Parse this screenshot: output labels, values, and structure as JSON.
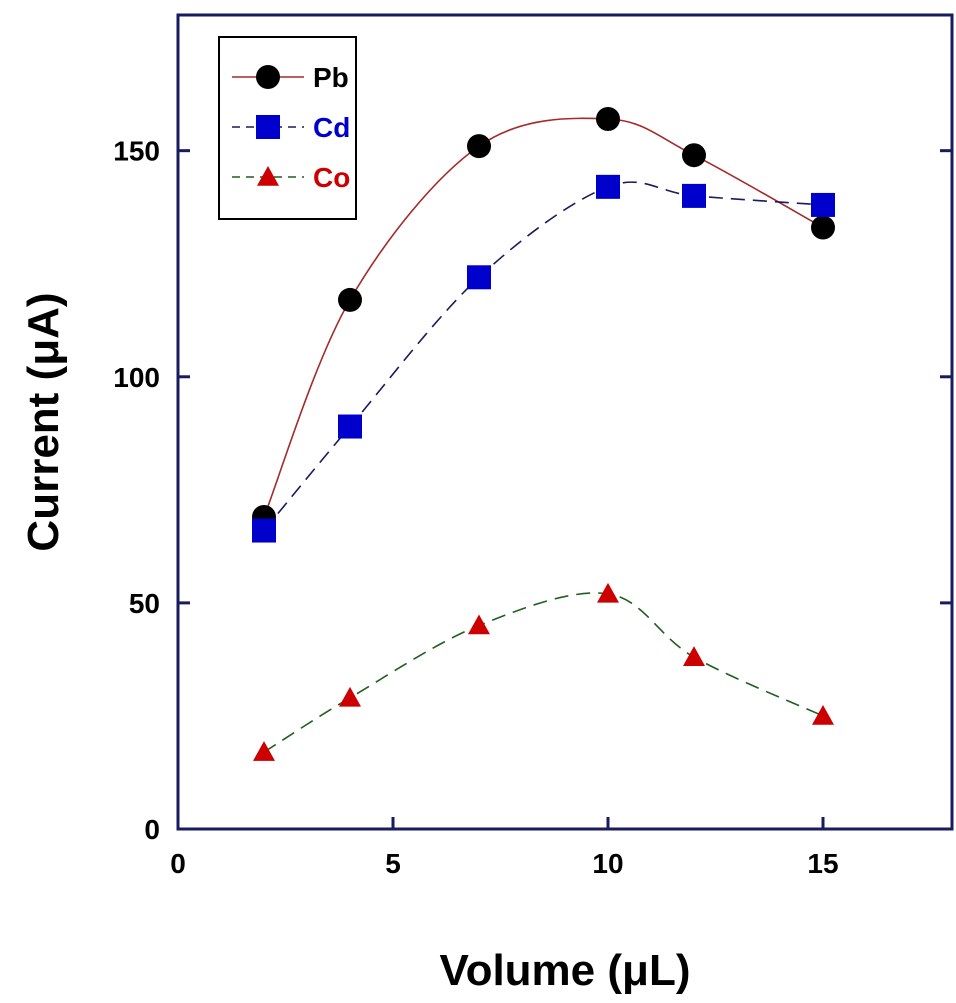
{
  "chart_data": {
    "type": "line",
    "title": "",
    "xlabel": "Volume (μL)",
    "ylabel": "Current (μA)",
    "xlim": [
      0,
      18
    ],
    "ylim": [
      0,
      180
    ],
    "x_ticks": [
      0,
      5,
      10,
      15
    ],
    "y_ticks": [
      0,
      50,
      100,
      150
    ],
    "grid": false,
    "legend_position": "top-left",
    "x": [
      2,
      4,
      7,
      10,
      12,
      15
    ],
    "series": [
      {
        "name": "Pb",
        "values": [
          69,
          117,
          151,
          157,
          149,
          133
        ],
        "marker": "circle",
        "marker_color": "#000000",
        "line_color": "#a52a2a",
        "line_style": "solid",
        "label_color": "#000000"
      },
      {
        "name": "Cd",
        "values": [
          66,
          89,
          122,
          142,
          140,
          138
        ],
        "marker": "square",
        "marker_color": "#0000cc",
        "line_color": "#1a1a5e",
        "line_style": "dashed",
        "label_color": "#0000cc"
      },
      {
        "name": "Co",
        "values": [
          17,
          29,
          45,
          52,
          38,
          25
        ],
        "marker": "triangle",
        "marker_color": "#cc0000",
        "line_color": "#1f5f1f",
        "line_style": "dashed",
        "label_color": "#cc0000"
      }
    ]
  }
}
